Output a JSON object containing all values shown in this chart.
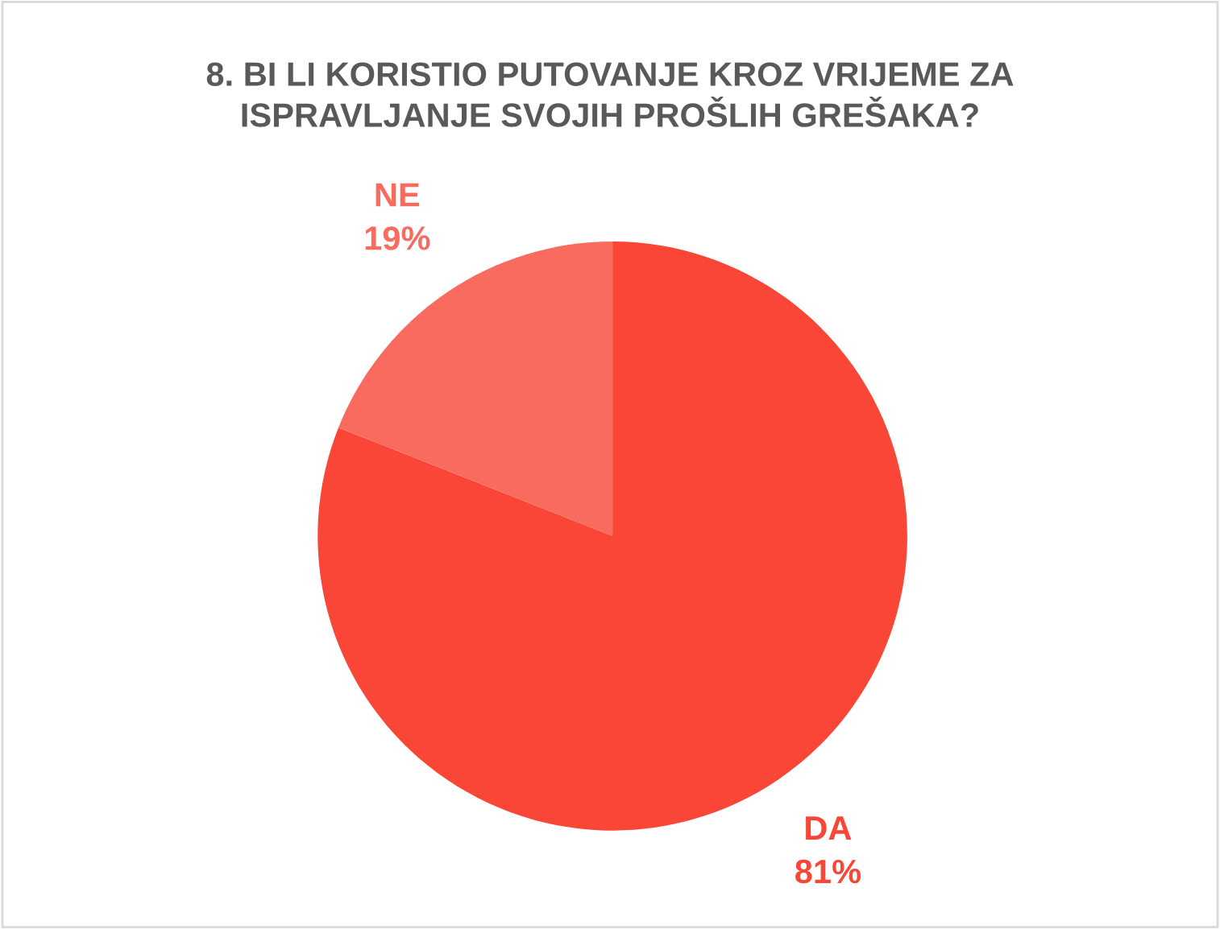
{
  "chart_data": {
    "type": "pie",
    "title": "8. BI LI KORISTIO PUTOVANJE KROZ VRIJEME ZA\nISPRAVLJANJE SVOJIH PROŠLIH GREŠAKA?",
    "categories": [
      "DA",
      "NE"
    ],
    "values": [
      81,
      19
    ],
    "colors": [
      "#f94636",
      "#f96b5e"
    ],
    "value_labels": [
      "81%",
      "19%"
    ],
    "legend": false
  }
}
